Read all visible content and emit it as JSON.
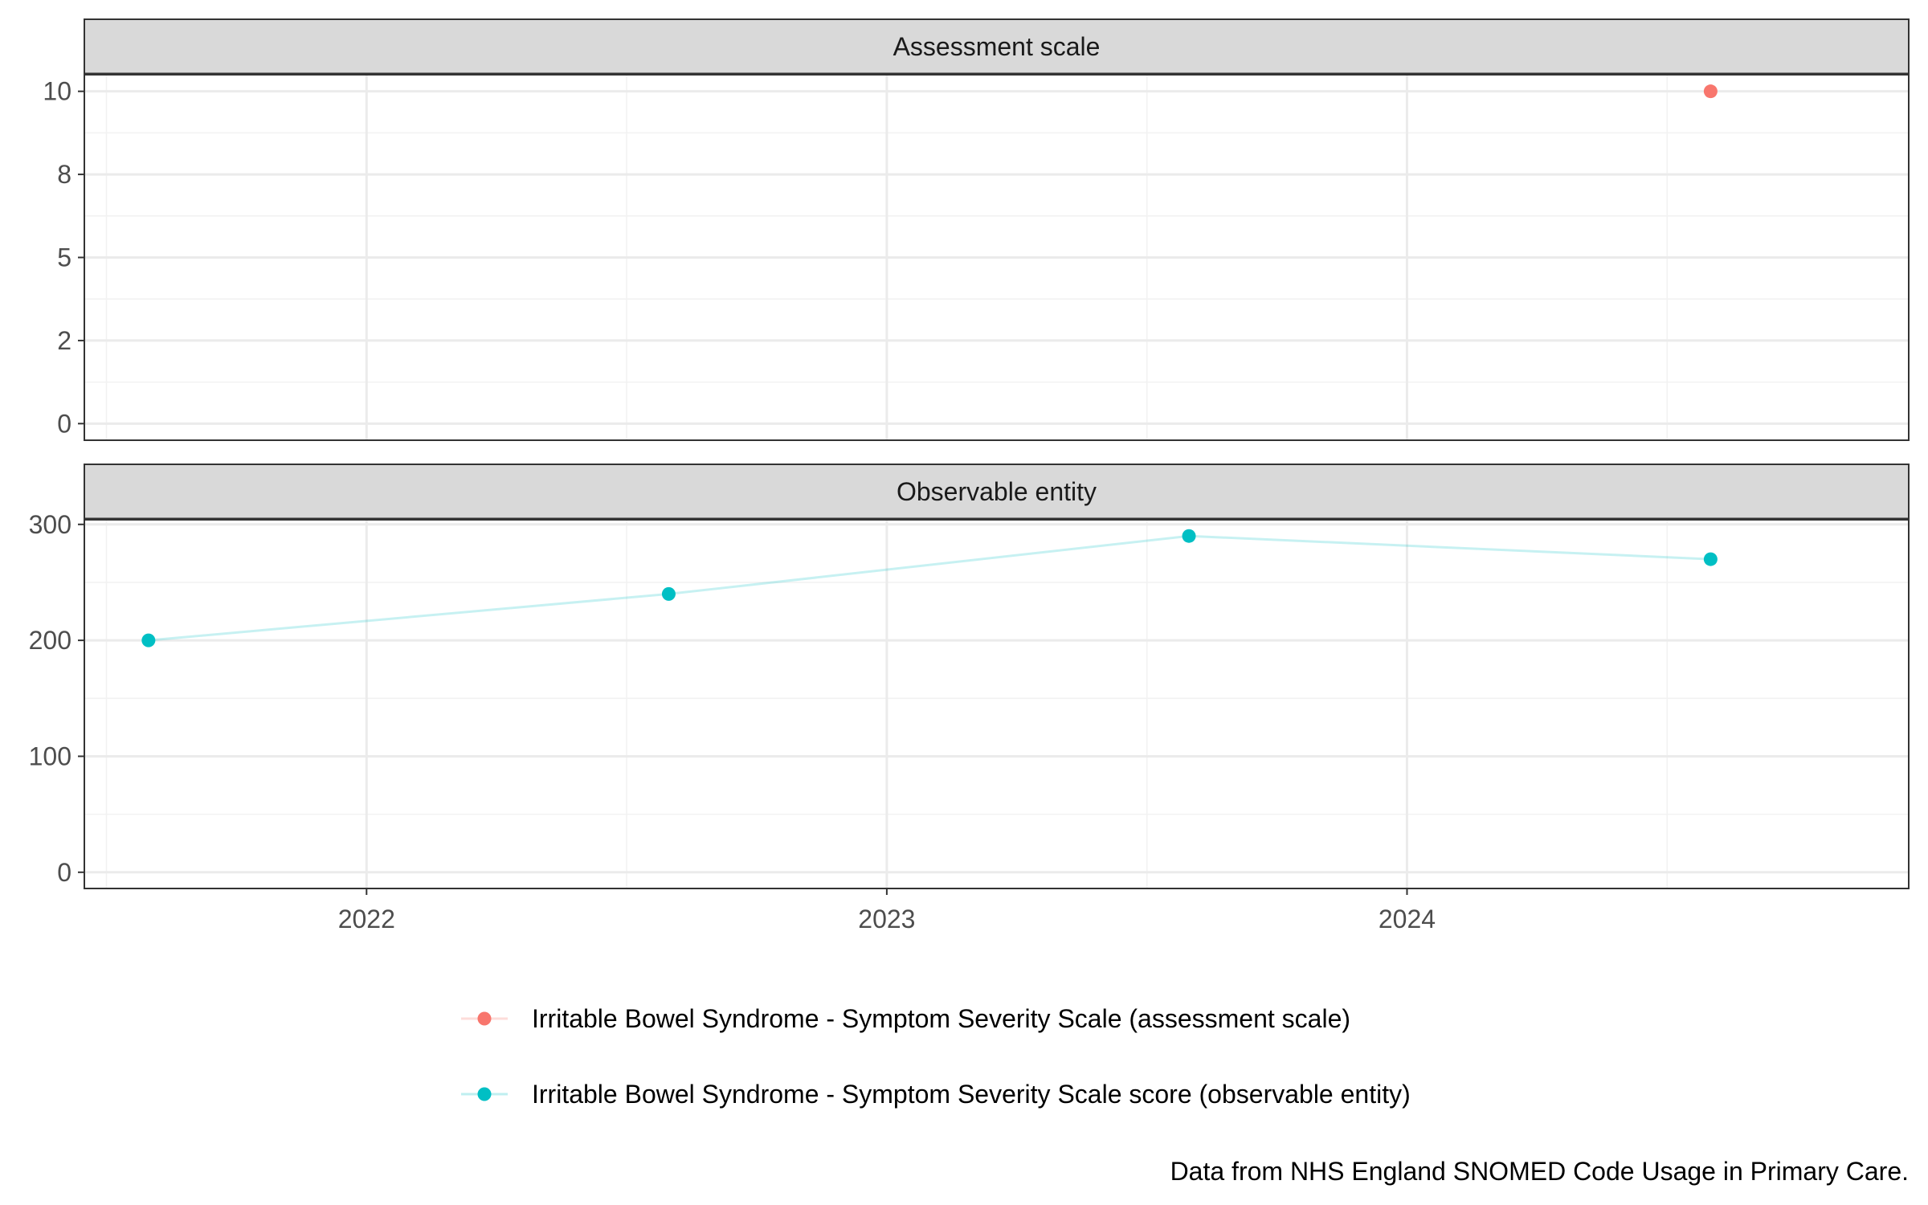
{
  "chart_data": {
    "type": "line",
    "caption": "Data from NHS England SNOMED Code Usage in Primary Care.",
    "x_axis": {
      "type": "date",
      "range": [
        "2021-06-17",
        "2024-12-18"
      ],
      "ticks": [
        {
          "value": "2022-01-01",
          "label": "2022"
        },
        {
          "value": "2023-01-01",
          "label": "2023"
        },
        {
          "value": "2024-01-01",
          "label": "2024"
        }
      ]
    },
    "panels": [
      {
        "strip": "Assessment scale",
        "ylim": [
          -0.5,
          10.5
        ],
        "y_ticks": [
          {
            "value": 0,
            "label": "0"
          },
          {
            "value": 2.5,
            "label": "2"
          },
          {
            "value": 5,
            "label": "5"
          },
          {
            "value": 7.5,
            "label": "8"
          },
          {
            "value": 10,
            "label": "10"
          }
        ],
        "series": [
          {
            "name": "Irritable Bowel Syndrome - Symptom Severity Scale (assessment scale)",
            "color": "#F8766D",
            "points": [
              {
                "x": "2024-08-01",
                "y": 10
              }
            ]
          }
        ]
      },
      {
        "strip": "Observable entity",
        "ylim": [
          -14,
          304
        ],
        "y_ticks": [
          {
            "value": 0,
            "label": "0"
          },
          {
            "value": 100,
            "label": "100"
          },
          {
            "value": 200,
            "label": "200"
          },
          {
            "value": 300,
            "label": "300"
          }
        ],
        "series": [
          {
            "name": "Irritable Bowel Syndrome - Symptom Severity Scale score (observable entity)",
            "color": "#00BFC4",
            "points": [
              {
                "x": "2021-08-01",
                "y": 200
              },
              {
                "x": "2022-08-01",
                "y": 240
              },
              {
                "x": "2023-08-01",
                "y": 290
              },
              {
                "x": "2024-08-01",
                "y": 270
              }
            ]
          }
        ]
      }
    ],
    "legend": {
      "position": "bottom",
      "items": [
        {
          "label": "Irritable Bowel Syndrome - Symptom Severity Scale (assessment scale)",
          "color": "#F8766D"
        },
        {
          "label": "Irritable Bowel Syndrome - Symptom Severity Scale score (observable entity)",
          "color": "#00BFC4"
        }
      ]
    },
    "grid": true
  }
}
